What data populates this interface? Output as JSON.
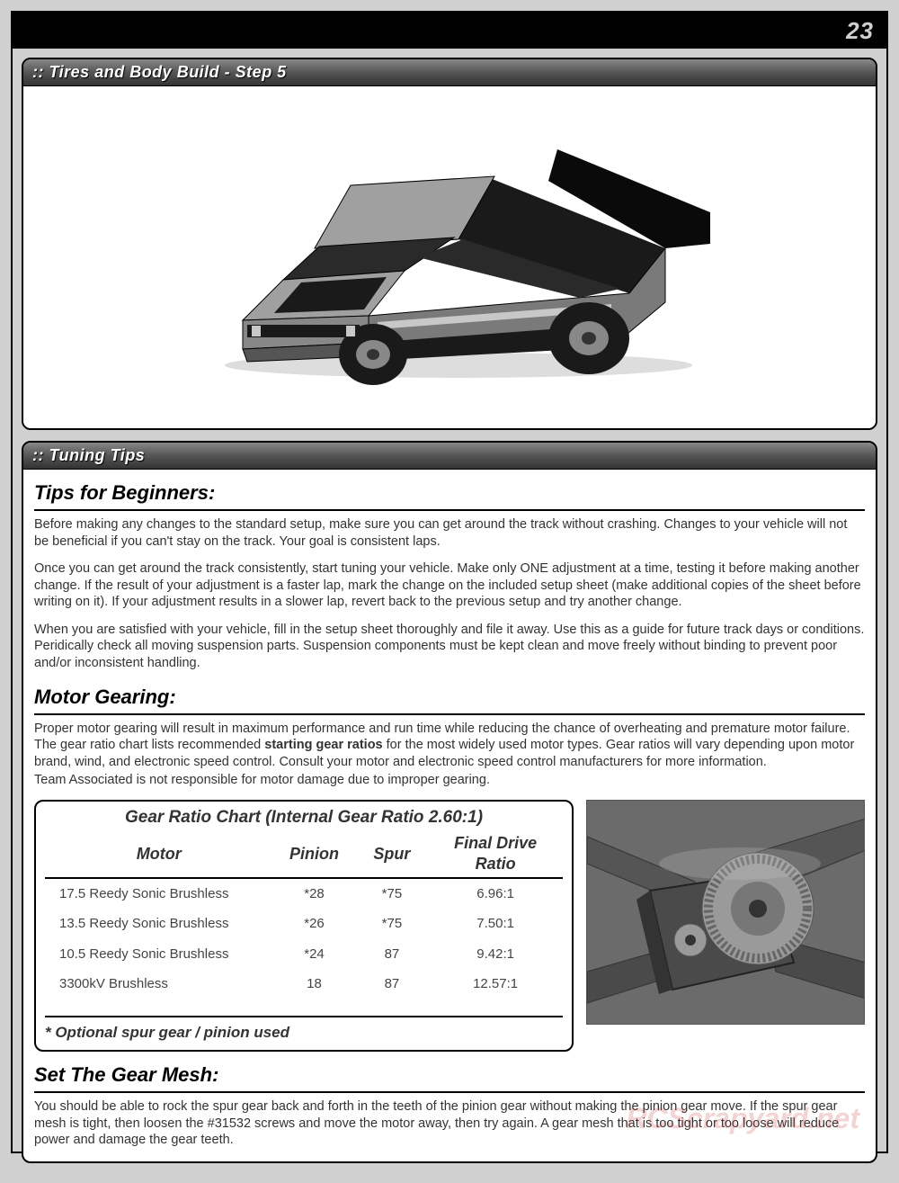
{
  "page_number": "23",
  "panel1": {
    "title": ":: Tires and Body Build - Step 5",
    "car": {
      "body_top": "#a0a0a0",
      "body_side": "#7a7a7a",
      "hood_dark": "#1a1a1a",
      "wing": "#0a0a0a",
      "wheel_tire": "#1a1a1a",
      "wheel_rim": "#888",
      "window": "#2a2a2a",
      "chrome": "#c8c8c8",
      "outline": "#000"
    }
  },
  "panel2": {
    "title": ":: Tuning Tips",
    "beginners_heading": "Tips for Beginners:",
    "beginners_p1": "Before making any changes to the standard setup, make sure you can get around the track without crashing. Changes to your vehicle will not be beneficial if you can't stay on the track.  Your goal is consistent laps.",
    "beginners_p2": "Once you can get around the track consistently, start tuning your vehicle.  Make only ONE adjustment at a time, testing it before making another change.  If the result of your adjustment is a faster lap, mark the change on the included setup sheet (make additional copies of the sheet before writing on it).  If your adjustment results in a slower lap, revert back to the previous setup and try another change.",
    "beginners_p3": "When you are satisfied with your vehicle, fill in the setup sheet thoroughly and file it away.  Use this as a guide for future track days or conditions.  Peridically check all moving suspension parts.  Suspension components must be kept clean and move freely without binding to prevent poor and/or inconsistent handling.",
    "motor_heading": "Motor Gearing:",
    "motor_p1_a": "Proper motor gearing will result in maximum performance and run time while reducing the chance of overheating and premature motor failure.  The gear ratio chart lists recommended ",
    "motor_p1_b": "starting gear ratios",
    "motor_p1_c": " for the most widely used motor types.  Gear ratios will vary depending upon motor brand, wind, and electronic speed control.  Consult your motor and electronic speed control manufacturers for more information.",
    "motor_p2": "Team Associated is not responsible for motor damage due to improper gearing.",
    "chart": {
      "title": "Gear Ratio Chart (Internal Gear Ratio 2.60:1)",
      "columns": [
        "Motor",
        "Pinion",
        "Spur",
        "Final Drive Ratio"
      ],
      "rows": [
        [
          "17.5 Reedy Sonic Brushless",
          "*28",
          "*75",
          "6.96:1"
        ],
        [
          "13.5 Reedy Sonic Brushless",
          "*26",
          "*75",
          "7.50:1"
        ],
        [
          "10.5 Reedy Sonic Brushless",
          "*24",
          "87",
          "9.42:1"
        ],
        [
          "3300kV Brushless",
          "18",
          "87",
          "12.57:1"
        ]
      ],
      "footer": "* Optional spur gear / pinion used"
    },
    "gear_image": {
      "bg": "#6b6b6b",
      "mount": "#4a4a4a",
      "gear_outer": "#9a9a9a",
      "gear_inner": "#777",
      "axle": "#333",
      "highlight": "#c8c8c8"
    },
    "mesh_heading": "Set The Gear Mesh:",
    "mesh_p1": "You should be able to rock the spur gear back and forth in the teeth of the pinion gear without making the pinion gear move.  If the spur gear mesh is tight, then loosen the #31532 screws and move the motor away, then try again. A gear mesh that is too tight or too loose will reduce power and damage the gear teeth."
  },
  "watermark": "RCScrapyard.net"
}
